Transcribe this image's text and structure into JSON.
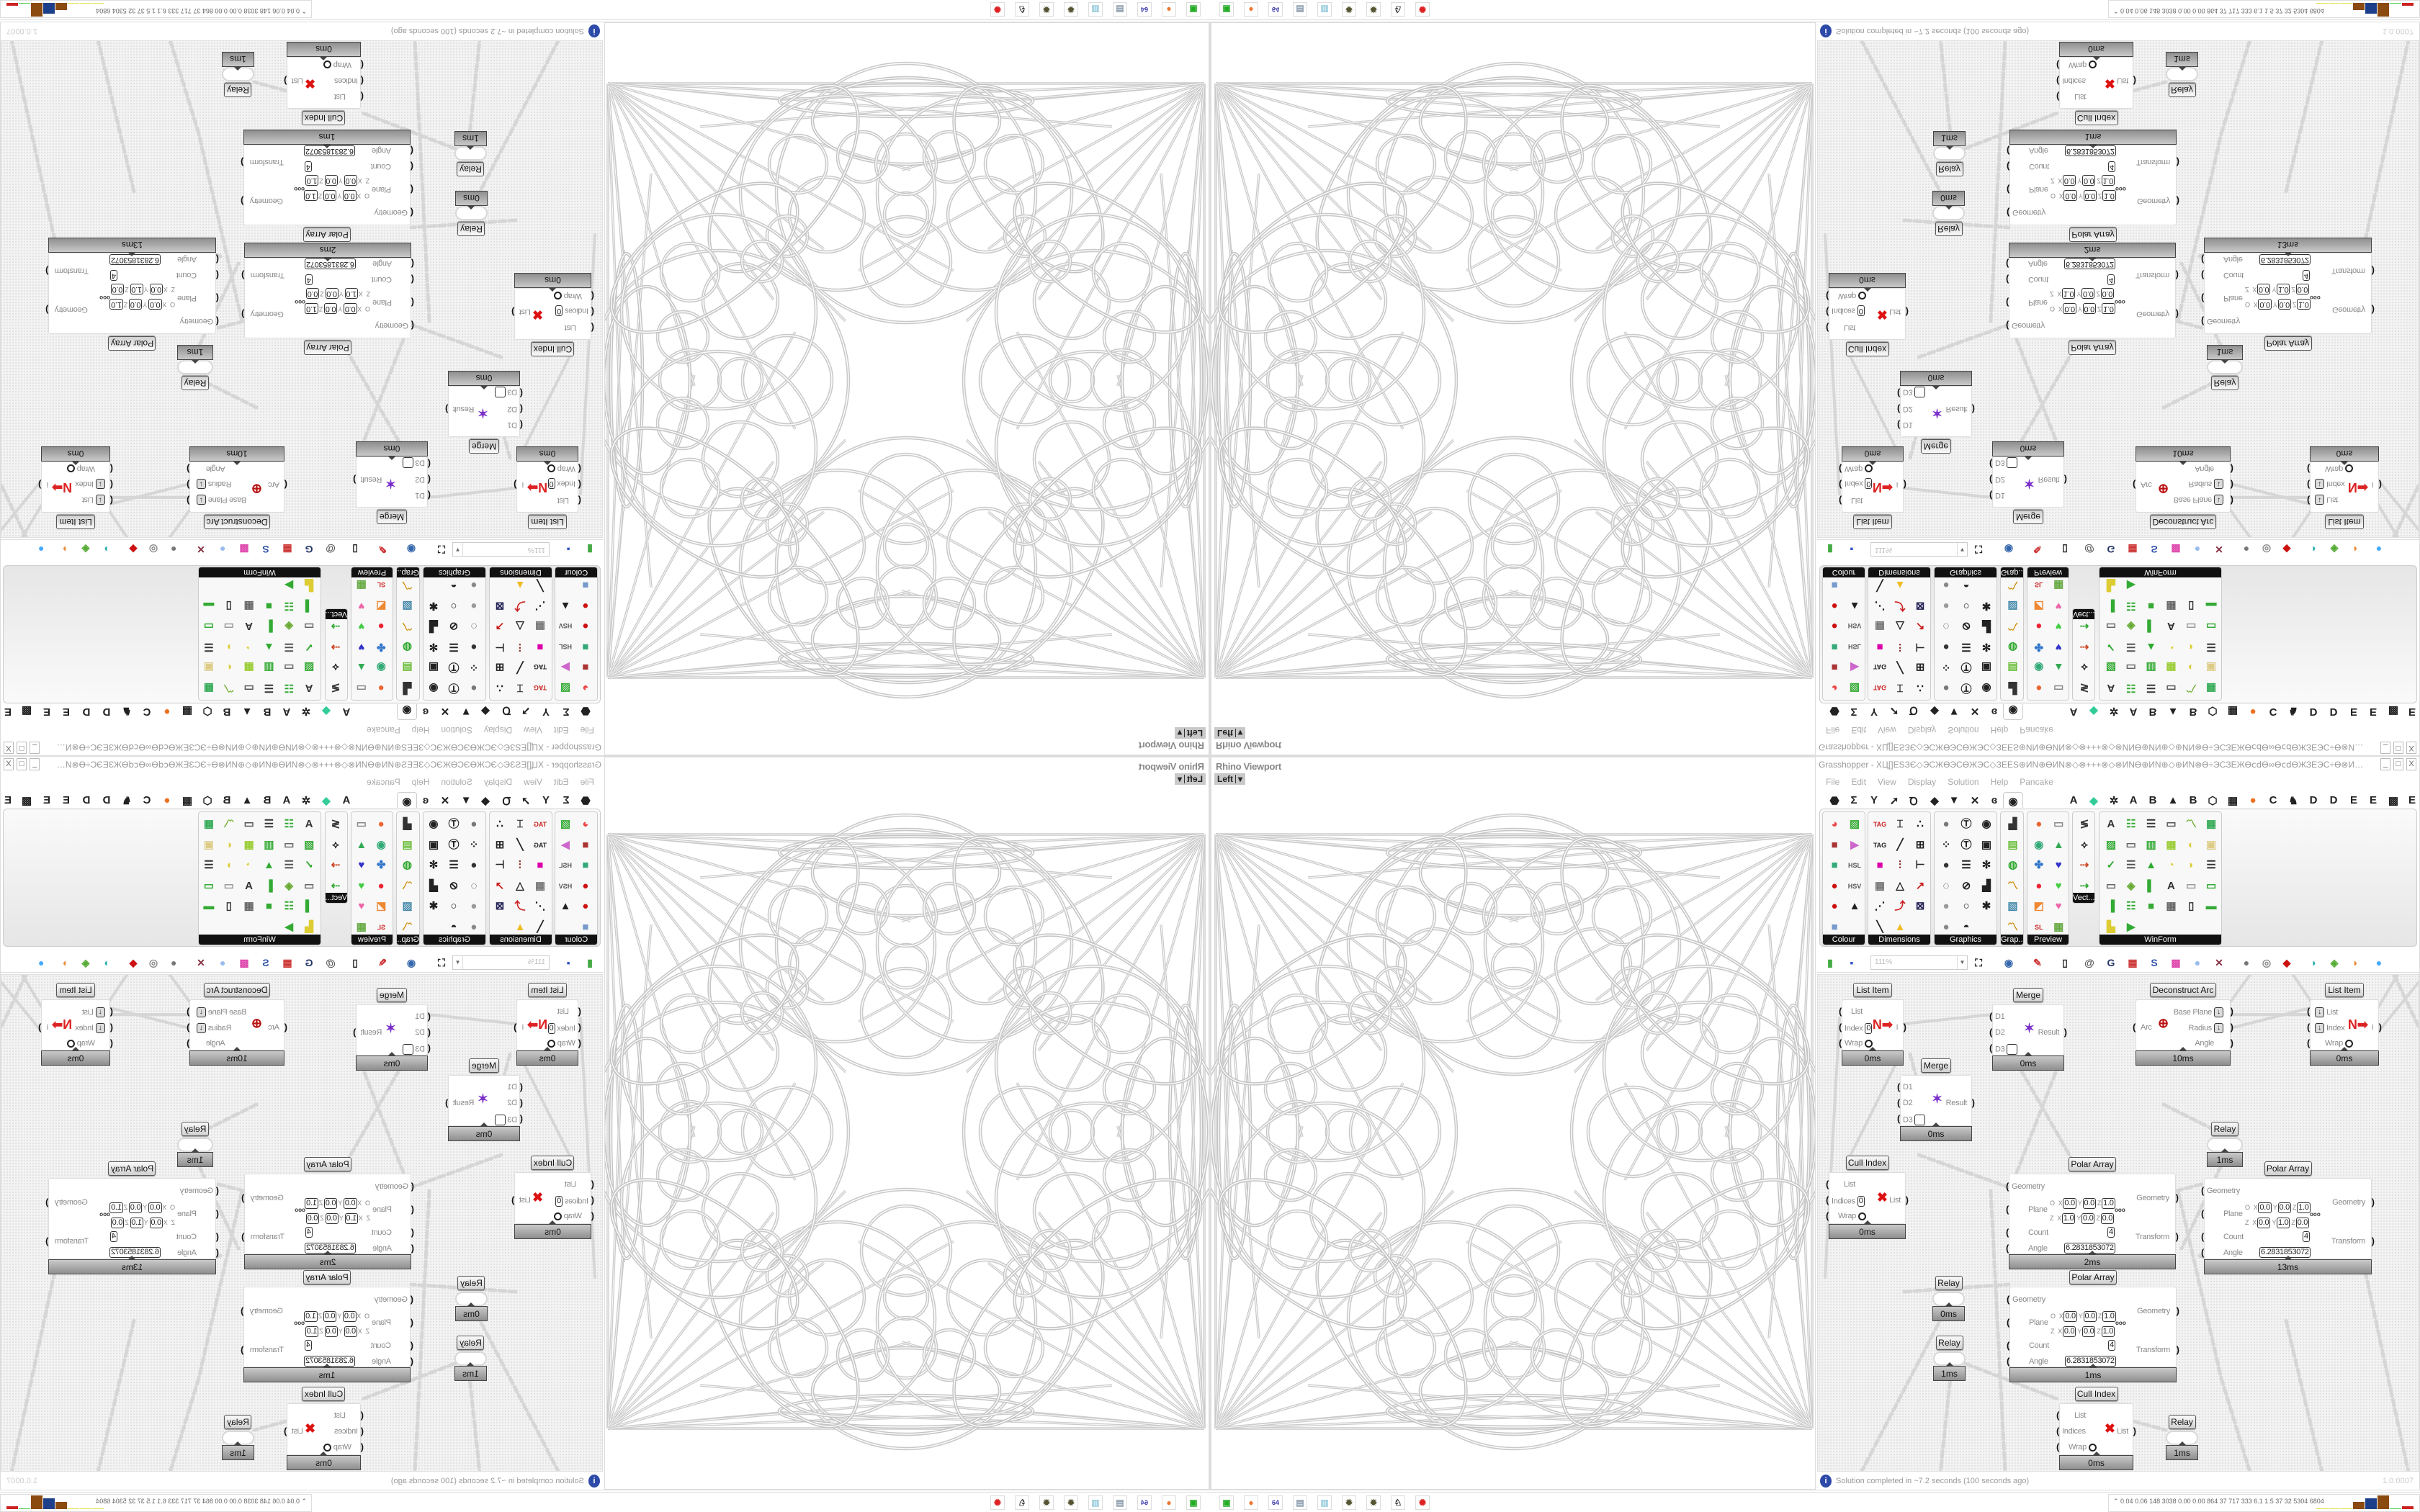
{
  "viewport": {
    "label": "Rhino Viewport",
    "view": "Left",
    "view_arrow": "▾"
  },
  "grasshopper": {
    "title": "Grasshopper - ХЦ[]ЕЅЗЄ◇ЭСЖӨЭСӨЖЭС◇ЗЕЕЅ⊕ИN⊕ӨИN⊗◇⊗+++⊗◇⊗ИNӨ⊕ИN⊕◇⊕ИN⊗Ө÷ЭСЗЕЖӨⅽⅾӨ∞ӨⅽⅾӨЖЗЕЭС÷Ө⊗ИN⊕◇⊕ЗЕЖЗЕ⊞÷ЕЅ÷⊞ЗЕЖЗЕ⊕◇⊕ЖⅽⅾЗЕ⊞÷÷ЭС...",
    "window_buttons": [
      "_",
      "□",
      "X"
    ],
    "menu": [
      "File",
      "Edit",
      "View",
      "Display",
      "Solution",
      "Help",
      "Pancake"
    ],
    "tabs": [
      {
        "name": "params",
        "glyph": "⬣"
      },
      {
        "name": "maths",
        "glyph": "Σ"
      },
      {
        "name": "sets",
        "glyph": "Y"
      },
      {
        "name": "vector",
        "glyph": "➚"
      },
      {
        "name": "curve",
        "glyph": "Ꝺ"
      },
      {
        "name": "surface",
        "glyph": "◆"
      },
      {
        "name": "mesh",
        "glyph": "▼"
      },
      {
        "name": "intersect",
        "glyph": "✕"
      },
      {
        "name": "transform",
        "glyph": "ɞ"
      },
      {
        "name": "display",
        "glyph": "◉",
        "selected": true
      },
      {
        "name": "plugin-a",
        "glyph": "A"
      },
      {
        "name": "plugin-leaf",
        "glyph": "◆",
        "color": "#3c9"
      },
      {
        "name": "plugin-gear",
        "glyph": "✲"
      },
      {
        "name": "plugin-a2",
        "glyph": "A"
      },
      {
        "name": "plugin-b",
        "glyph": "B"
      },
      {
        "name": "plugin-mountain",
        "glyph": "▲"
      },
      {
        "name": "plugin-b2",
        "glyph": "B"
      },
      {
        "name": "plugin-shield",
        "glyph": "⬡"
      },
      {
        "name": "plugin-grid",
        "glyph": "▦"
      },
      {
        "name": "plugin-orange",
        "glyph": "●",
        "color": "#f07020"
      },
      {
        "name": "plugin-c",
        "glyph": "C"
      },
      {
        "name": "plugin-rooster",
        "glyph": "♞"
      },
      {
        "name": "plugin-d",
        "glyph": "D"
      },
      {
        "name": "plugin-d2",
        "glyph": "D"
      },
      {
        "name": "plugin-e",
        "glyph": "E"
      },
      {
        "name": "plugin-e2",
        "glyph": "E"
      },
      {
        "name": "plugin-grid2",
        "glyph": "▩"
      },
      {
        "name": "plugin-e3",
        "glyph": "E"
      }
    ],
    "palette": [
      {
        "label": "Colour",
        "icons": [
          [
            "◕",
            "#e44"
          ],
          [
            "▨",
            "#3a3"
          ],
          [
            "■",
            "#a33"
          ],
          [
            "▶",
            "#c6c"
          ],
          [
            "■",
            "#3a7"
          ],
          [
            "HSL",
            "#555"
          ],
          [
            "●",
            "#c11"
          ],
          [
            "HSV",
            "#555"
          ],
          [
            "●",
            "#c11"
          ],
          [
            "▲",
            "#222"
          ],
          [
            "■",
            "#79c"
          ]
        ]
      },
      {
        "label": "Dimensions",
        "icons": [
          [
            "TAG",
            "#c22"
          ],
          [
            "⌶",
            "#222"
          ],
          [
            "∴",
            "#222"
          ],
          [
            "TAG",
            "#222"
          ],
          [
            "╱",
            "#222"
          ],
          [
            "⊞",
            "#222"
          ],
          [
            "■",
            "#d0a"
          ],
          [
            "⫶",
            "#822"
          ],
          [
            "⊢",
            "#222"
          ],
          [
            "▦",
            "#777"
          ],
          [
            "△",
            "#222"
          ],
          [
            "↗",
            "#c22"
          ],
          [
            "⋰",
            "#222"
          ],
          [
            "⤴",
            "#c22"
          ],
          [
            "⊠",
            "#225"
          ],
          [
            "╲",
            "#222"
          ],
          [
            "▲",
            "#eb2"
          ]
        ]
      },
      {
        "label": "Graphics",
        "icons": [
          [
            "●",
            "#777"
          ],
          [
            "Ⓣ",
            "#222"
          ],
          [
            "◉",
            "#222"
          ],
          [
            "⁘",
            "#222"
          ],
          [
            "Ⓣ",
            "#111"
          ],
          [
            "▣",
            "#222"
          ],
          [
            "●",
            "#333"
          ],
          [
            "☰",
            "#222"
          ],
          [
            "✻",
            "#222"
          ],
          [
            "◌",
            "#222"
          ],
          [
            "⊘",
            "#222"
          ],
          [
            "▟",
            "#222"
          ],
          [
            "●",
            "#999"
          ],
          [
            "○",
            "#222"
          ],
          [
            "✱",
            "#222"
          ],
          [
            "●",
            "#888"
          ],
          [
            "◓",
            "#222"
          ]
        ]
      },
      {
        "label": "Grap...",
        "icons": [
          [
            "▟",
            "#333"
          ],
          [
            "▤",
            "#6b3"
          ],
          [
            "◍",
            "#3a3"
          ],
          [
            "〽",
            "#c80"
          ],
          [
            "▧",
            "#48a"
          ],
          [
            "〽",
            "#c80"
          ]
        ]
      },
      {
        "label": "Preview",
        "icons": [
          [
            "●",
            "#e63"
          ],
          [
            "▭",
            "#888"
          ],
          [
            "◉",
            "#3a7"
          ],
          [
            "▲",
            "#3a5"
          ],
          [
            "✤",
            "#37c"
          ],
          [
            "♥",
            "#33c"
          ],
          [
            "●",
            "#e23"
          ],
          [
            "♥",
            "#4c4"
          ],
          [
            "◩",
            "#e83"
          ],
          [
            "♥",
            "#e6a"
          ],
          [
            "SL",
            "#c22"
          ],
          [
            "▦",
            "#6a4"
          ]
        ]
      },
      {
        "label": "Vect...",
        "icons": [
          [
            "≶",
            "#333"
          ],
          [
            "⟡",
            "#222"
          ],
          [
            "⇢",
            "#c42"
          ],
          [
            "⇢",
            "#3a3"
          ]
        ]
      },
      {
        "label": "WinForm",
        "icons": [
          [
            "A",
            "#333"
          ],
          [
            "☷",
            "#3a3"
          ],
          [
            "☰",
            "#333"
          ],
          [
            "▭",
            "#555"
          ],
          [
            "〽",
            "#6a2"
          ],
          [
            "▦",
            "#3a5"
          ],
          [
            "▨",
            "#3a3"
          ],
          [
            "▭",
            "#666"
          ],
          [
            "▥",
            "#3a3"
          ],
          [
            "▦",
            "#9c3"
          ],
          [
            "◐",
            "#dc4"
          ],
          [
            "▣",
            "#dc8"
          ],
          [
            "✓",
            "#3a3"
          ],
          [
            "☰",
            "#555"
          ],
          [
            "▲",
            "#3a3"
          ],
          [
            "◔",
            "#dc3"
          ],
          [
            "◗",
            "#dc3"
          ],
          [
            "☰",
            "#333"
          ],
          [
            "▭",
            "#666"
          ],
          [
            "◈",
            "#6a3"
          ],
          [
            "▌",
            "#3a3"
          ],
          [
            "A",
            "#333"
          ],
          [
            "▭",
            "#999"
          ],
          [
            "▭",
            "#3a3"
          ],
          [
            "▐",
            "#3a3"
          ],
          [
            "☷",
            "#3a3"
          ],
          [
            "■",
            "#3a3"
          ],
          [
            "▦",
            "#666"
          ],
          [
            "▯",
            "#333"
          ],
          [
            "▬",
            "#3a3"
          ],
          [
            "▙",
            "#dc3"
          ],
          [
            "▶",
            "#3a3"
          ]
        ]
      }
    ],
    "toolbar": {
      "zoom_value": "111%",
      "icons": [
        [
          "new-file",
          "▮",
          "#4a4"
        ],
        [
          "save",
          "▪",
          "#35c"
        ],
        [
          "zoom-extents",
          "⛶",
          "#222"
        ],
        [
          "preview",
          "◉",
          "#36a"
        ],
        [
          "sketch",
          "✎",
          "#c33"
        ],
        [
          "bake",
          "▯",
          "#222"
        ],
        [
          "email",
          "@",
          "#555"
        ],
        [
          "gha",
          "G",
          "#236"
        ],
        [
          "screenshot",
          "▦",
          "#c33"
        ],
        [
          "search",
          "S",
          "#35a"
        ],
        [
          "package",
          "▩",
          "#d4a"
        ],
        [
          "bulb",
          "●",
          "#9be"
        ],
        [
          "wires",
          "✕",
          "#834"
        ],
        [
          "sphere-a",
          "●",
          "#777"
        ],
        [
          "ring",
          "◎",
          "#888"
        ],
        [
          "gem",
          "◆",
          "#c11"
        ],
        [
          "twist",
          "◗",
          "#2aa"
        ],
        [
          "leaf",
          "◈",
          "#5a3"
        ],
        [
          "half-sphere",
          "◑",
          "#e83"
        ],
        [
          "globe",
          "●",
          "#4af"
        ]
      ]
    },
    "components": {
      "list_item_a": {
        "title": "List Item",
        "inputs": [
          "List",
          "Index",
          "Wrap"
        ],
        "index_value": "0",
        "output": "i",
        "time": "0ms"
      },
      "merge_a": {
        "title": "Merge",
        "inputs": [
          "D1",
          "D2",
          "D3"
        ],
        "output": "Result",
        "time": "0ms"
      },
      "merge_b": {
        "title": "Merge",
        "inputs": [
          "D1",
          "D2",
          "D3"
        ],
        "output": "Result",
        "time": "0ms"
      },
      "deconstruct_arc": {
        "title": "Deconstruct Arc",
        "input": "Arc",
        "outputs": [
          "Base Plane",
          "Radius",
          "Angle"
        ],
        "time": "10ms"
      },
      "list_item_b": {
        "title": "List Item",
        "inputs": [
          "List",
          "Index",
          "Wrap"
        ],
        "output": "i",
        "time": "0ms"
      },
      "relay_a": {
        "title": "Relay",
        "time": "1ms"
      },
      "cull_index_a": {
        "title": "Cull Index",
        "inputs": [
          "List",
          "Indices",
          "Wrap"
        ],
        "indices_value": "0",
        "output": "List",
        "time": "0ms"
      },
      "polar_array_a": {
        "title": "Polar Array",
        "inputs": [
          "Geometry",
          "Plane",
          "Count",
          "Angle"
        ],
        "outputs": [
          "Geometry",
          "Transform"
        ],
        "origin": [
          "0.0",
          "0.0",
          "1.0"
        ],
        "zaxis": [
          "1.0",
          "0.0",
          "0.0"
        ],
        "count": "4",
        "angle": "6.2831853072",
        "time": "2ms"
      },
      "polar_array_b": {
        "title": "Polar Array",
        "inputs": [
          "Geometry",
          "Plane",
          "Count",
          "Angle"
        ],
        "outputs": [
          "Geometry",
          "Transform"
        ],
        "origin": [
          "0.0",
          "0.0",
          "1.0"
        ],
        "zaxis": [
          "0.0",
          "1.0",
          "0.0"
        ],
        "count": "4",
        "angle": "6.2831853072",
        "time": "13ms"
      },
      "relay_b": {
        "title": "Relay",
        "time": "0ms"
      },
      "relay_c": {
        "title": "Relay",
        "time": "1ms"
      },
      "polar_array_c": {
        "title": "Polar Array",
        "inputs": [
          "Geometry",
          "Plane",
          "Count",
          "Angle"
        ],
        "outputs": [
          "Geometry",
          "Transform"
        ],
        "origin": [
          "0.0",
          "0.0",
          "1.0"
        ],
        "zaxis": [
          "0.0",
          "0.0",
          "1.0"
        ],
        "count": "4",
        "angle": "6.2831853072",
        "time": "1ms"
      },
      "cull_index_b": {
        "title": "Cull Index",
        "inputs": [
          "List",
          "Indices",
          "Wrap"
        ],
        "output": "List",
        "time": "0ms"
      },
      "relay_d": {
        "title": "Relay",
        "time": "1ms"
      }
    },
    "plane_labels": {
      "o": "O",
      "z": "Z",
      "x": "X",
      "y": "Y",
      "zc": "Z"
    },
    "status": {
      "icon": "i",
      "text": "Solution completed in ~7.2 seconds (100 seconds ago)",
      "version": "1.0.0007"
    }
  },
  "taskbar": {
    "icons": [
      [
        "terminal",
        "▣",
        "#2a2"
      ],
      [
        "firefox",
        "●",
        "#e73"
      ],
      [
        "floppy-64",
        "64",
        "#33a"
      ],
      [
        "scroll",
        "▤",
        "#89a"
      ],
      [
        "notepad",
        "▥",
        "#9cd"
      ],
      [
        "cog",
        "✹",
        "#553"
      ],
      [
        "cog",
        "✹",
        "#553"
      ],
      [
        "cow",
        "♘",
        "#111"
      ],
      [
        "red-badge",
        "✺",
        "#d22"
      ]
    ],
    "stats": "0.04 0.06 148 3038 0.00 0.00 864  37  717  333  6.1  1.5  37  32  5304 6804",
    "stats_bars": [
      {
        "color": "#dddd44",
        "level": 0.05
      },
      {
        "color": "#dddd44",
        "level": 0.05
      },
      {
        "color": "#dddd44",
        "level": 0.05
      },
      {
        "color": "#8a4a10",
        "level": 0.5
      },
      {
        "color": "#1d3f8a",
        "level": 0.75
      },
      {
        "color": "#8a4a10",
        "level": 0.95
      },
      {
        "color": "#44cc44",
        "level": 0.05
      },
      {
        "color": "#cc2222",
        "level": 0.2
      }
    ]
  }
}
